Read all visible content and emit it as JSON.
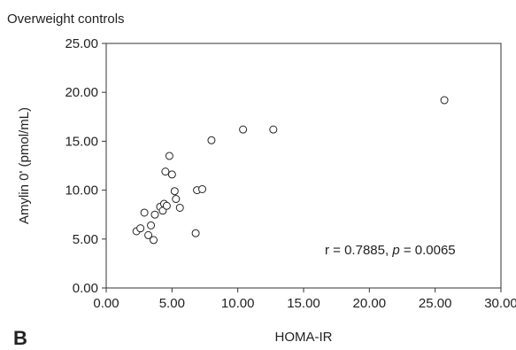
{
  "chart_data": {
    "type": "scatter",
    "title": "Overweight controls",
    "panel_label": "B",
    "xlabel": "HOMA-IR",
    "ylabel": "Amylin 0' (pmol/mL)",
    "xlim": [
      0,
      30
    ],
    "ylim": [
      0,
      25
    ],
    "xticks": [
      0,
      5,
      10,
      15,
      20,
      25,
      30
    ],
    "yticks": [
      0,
      5,
      10,
      15,
      20,
      25
    ],
    "xtick_labels": [
      "0.00",
      "5.00",
      "10.00",
      "15.00",
      "20.00",
      "25.00",
      "30.00"
    ],
    "ytick_labels": [
      "0.00",
      "5.00",
      "10.00",
      "15.00",
      "20.00",
      "25.00"
    ],
    "grid": false,
    "annotation": {
      "r_text": "r = 0.7885, ",
      "p_symbol": "p",
      "p_text": " = 0.0065"
    },
    "points": [
      {
        "x": 2.3,
        "y": 5.8
      },
      {
        "x": 2.6,
        "y": 6.1
      },
      {
        "x": 2.9,
        "y": 7.7
      },
      {
        "x": 3.2,
        "y": 5.4
      },
      {
        "x": 3.4,
        "y": 6.4
      },
      {
        "x": 3.6,
        "y": 4.9
      },
      {
        "x": 3.7,
        "y": 7.5
      },
      {
        "x": 4.1,
        "y": 8.3
      },
      {
        "x": 4.3,
        "y": 7.9
      },
      {
        "x": 4.4,
        "y": 8.6
      },
      {
        "x": 4.5,
        "y": 11.9
      },
      {
        "x": 4.6,
        "y": 8.4
      },
      {
        "x": 4.8,
        "y": 13.5
      },
      {
        "x": 5.0,
        "y": 11.6
      },
      {
        "x": 5.2,
        "y": 9.9
      },
      {
        "x": 5.3,
        "y": 9.1
      },
      {
        "x": 5.6,
        "y": 8.2
      },
      {
        "x": 6.8,
        "y": 5.6
      },
      {
        "x": 6.9,
        "y": 10.0
      },
      {
        "x": 7.3,
        "y": 10.1
      },
      {
        "x": 8.0,
        "y": 15.1
      },
      {
        "x": 10.4,
        "y": 16.2
      },
      {
        "x": 12.7,
        "y": 16.2
      },
      {
        "x": 25.7,
        "y": 19.2
      }
    ]
  }
}
